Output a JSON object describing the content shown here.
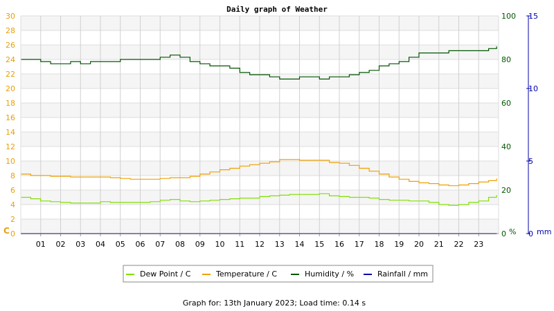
{
  "chart_data": {
    "type": "line",
    "title": "Daily graph of Weather",
    "footer": "Graph for: 13th January 2023; Load time: 0.14 s",
    "x_ticks": [
      "01",
      "02",
      "03",
      "04",
      "05",
      "06",
      "07",
      "08",
      "09",
      "10",
      "11",
      "12",
      "13",
      "14",
      "15",
      "16",
      "17",
      "18",
      "19",
      "20",
      "21",
      "22",
      "23"
    ],
    "x_range_hours": [
      0,
      24
    ],
    "axes": {
      "temp_left": {
        "unit_label": "C",
        "ylim": [
          0,
          30
        ],
        "ticks": [
          0,
          2,
          4,
          6,
          8,
          10,
          12,
          14,
          16,
          18,
          20,
          22,
          24,
          26,
          28,
          30
        ],
        "color": "#e6a00d"
      },
      "humidity_right": {
        "unit_label": "%",
        "ylim": [
          0,
          100
        ],
        "ticks": [
          0,
          20,
          40,
          60,
          80,
          100
        ],
        "color": "#005500"
      },
      "rain_right": {
        "unit_label": "mm",
        "ylim": [
          0,
          15
        ],
        "ticks": [
          0,
          5,
          10,
          15
        ],
        "color": "#0000aa"
      }
    },
    "series": [
      {
        "name": "Dew Point / C",
        "axis": "temp_left",
        "color": "#80e000",
        "x": [
          0,
          0.5,
          1,
          1.5,
          2,
          2.5,
          3,
          3.5,
          4,
          4.5,
          5,
          5.5,
          6,
          6.5,
          7,
          7.5,
          8,
          8.5,
          9,
          9.5,
          10,
          10.5,
          11,
          11.5,
          12,
          12.5,
          13,
          13.5,
          14,
          14.5,
          15,
          15.5,
          16,
          16.5,
          17,
          17.5,
          18,
          18.5,
          19,
          19.5,
          20,
          20.5,
          21,
          21.5,
          22,
          22.5,
          23,
          23.5,
          23.9
        ],
        "values": [
          5.0,
          4.8,
          4.5,
          4.4,
          4.3,
          4.2,
          4.2,
          4.2,
          4.4,
          4.3,
          4.3,
          4.3,
          4.3,
          4.4,
          4.6,
          4.7,
          4.5,
          4.4,
          4.5,
          4.6,
          4.7,
          4.8,
          4.9,
          4.9,
          5.1,
          5.2,
          5.3,
          5.4,
          5.4,
          5.4,
          5.5,
          5.2,
          5.1,
          5.0,
          5.0,
          4.9,
          4.7,
          4.6,
          4.6,
          4.5,
          4.5,
          4.3,
          4.0,
          3.9,
          4.0,
          4.3,
          4.5,
          5.0,
          5.3
        ]
      },
      {
        "name": "Temperature / C",
        "axis": "temp_left",
        "color": "#f0a000",
        "x": [
          0,
          0.5,
          1,
          1.5,
          2,
          2.5,
          3,
          3.5,
          4,
          4.5,
          5,
          5.5,
          6,
          6.5,
          7,
          7.5,
          8,
          8.5,
          9,
          9.5,
          10,
          10.5,
          11,
          11.5,
          12,
          12.5,
          13,
          13.5,
          14,
          14.5,
          15,
          15.5,
          16,
          16.5,
          17,
          17.5,
          18,
          18.5,
          19,
          19.5,
          20,
          20.5,
          21,
          21.5,
          22,
          22.5,
          23,
          23.5,
          23.9
        ],
        "values": [
          8.2,
          8.0,
          8.0,
          7.9,
          7.9,
          7.8,
          7.8,
          7.8,
          7.8,
          7.7,
          7.6,
          7.5,
          7.5,
          7.5,
          7.6,
          7.7,
          7.7,
          7.9,
          8.2,
          8.5,
          8.8,
          9.0,
          9.3,
          9.5,
          9.7,
          9.9,
          10.2,
          10.2,
          10.1,
          10.1,
          10.1,
          9.8,
          9.7,
          9.4,
          9.0,
          8.6,
          8.2,
          7.8,
          7.5,
          7.2,
          7.0,
          6.9,
          6.7,
          6.6,
          6.7,
          6.9,
          7.1,
          7.3,
          7.6
        ]
      },
      {
        "name": "Humidity / %",
        "axis": "humidity_right",
        "color": "#005500",
        "x": [
          0,
          0.5,
          1,
          1.5,
          2,
          2.5,
          3,
          3.5,
          4,
          4.5,
          5,
          5.5,
          6,
          6.5,
          7,
          7.5,
          8,
          8.5,
          9,
          9.5,
          10,
          10.5,
          11,
          11.5,
          12,
          12.5,
          13,
          13.5,
          14,
          14.5,
          15,
          15.5,
          16,
          16.5,
          17,
          17.5,
          18,
          18.5,
          19,
          19.5,
          20,
          20.5,
          21,
          21.5,
          22,
          22.5,
          23,
          23.5,
          23.9
        ],
        "values": [
          80,
          80,
          79,
          78,
          78,
          79,
          78,
          79,
          79,
          79,
          80,
          80,
          80,
          80,
          81,
          82,
          81,
          79,
          78,
          77,
          77,
          76,
          74,
          73,
          73,
          72,
          71,
          71,
          72,
          72,
          71,
          72,
          72,
          73,
          74,
          75,
          77,
          78,
          79,
          81,
          83,
          83,
          83,
          84,
          84,
          84,
          84,
          85,
          86
        ]
      },
      {
        "name": "Rainfall / mm",
        "axis": "rain_right",
        "color": "#0000aa",
        "x": [
          0,
          23.9
        ],
        "values": [
          0,
          0
        ]
      }
    ],
    "legend_placement": "bottom-center",
    "grid": true
  }
}
